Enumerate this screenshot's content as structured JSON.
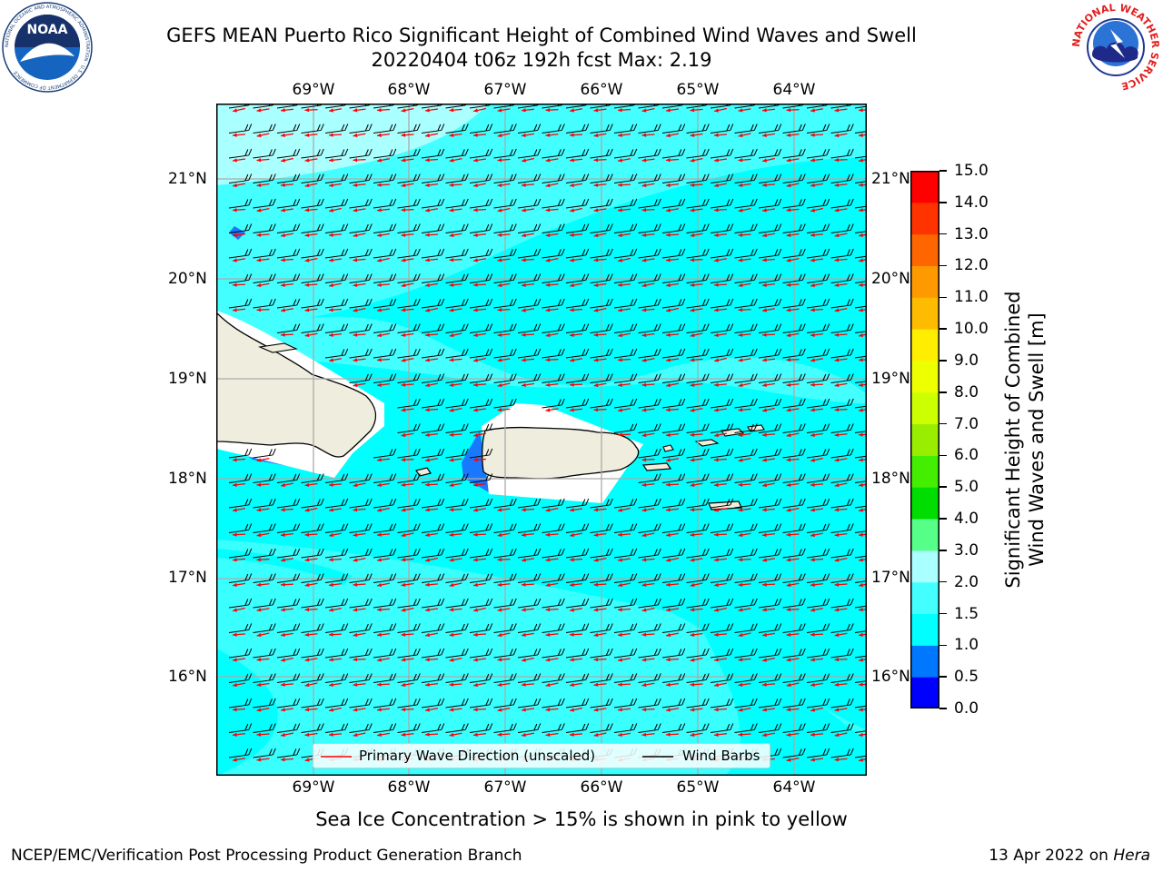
{
  "title": {
    "line1": "GEFS MEAN Puerto Rico Significant Height of Combined Wind Waves and Swell",
    "line2": "20220404 t06z 192h fcst   Max: 2.19"
  },
  "logos": {
    "left": {
      "text": "NOAA",
      "ring_text": "NATIONAL OCEANIC AND ATMOSPHERIC ADMINISTRATION · U.S. DEPARTMENT OF COMMERCE",
      "icon": "noaa-logo"
    },
    "right": {
      "ring_text": "NATIONAL WEATHER SERVICE",
      "icon": "nws-logo"
    }
  },
  "map": {
    "lon_labels": [
      "69°W",
      "68°W",
      "67°W",
      "66°W",
      "65°W",
      "64°W"
    ],
    "lat_labels": [
      "21°N",
      "20°N",
      "19°N",
      "18°N",
      "17°N",
      "16°N"
    ],
    "land_color": "#efedde",
    "ocean_fill_color": "#00ffff",
    "legend": {
      "wave_direction_label": "Primary Wave Direction (unscaled)",
      "wind_barbs_label": "Wind Barbs",
      "wave_direction_color": "#ff0000",
      "wind_barbs_color": "#000000"
    }
  },
  "colorbar": {
    "label_line1": "Significant Height of Combined",
    "label_line2": "Wind Waves and Swell [m]",
    "ticks": [
      "0.0",
      "0.5",
      "1.0",
      "1.5",
      "2.0",
      "3.0",
      "4.0",
      "5.0",
      "6.0",
      "7.0",
      "8.0",
      "9.0",
      "10.0",
      "11.0",
      "12.0",
      "13.0",
      "14.0",
      "15.0"
    ],
    "colors": [
      "#0000ff",
      "#0077ff",
      "#00ffff",
      "#44ffff",
      "#aaffff",
      "#55ff88",
      "#00dd00",
      "#44ee00",
      "#99ee00",
      "#ccff00",
      "#eeff00",
      "#ffee00",
      "#ffbb00",
      "#ff9900",
      "#ff6600",
      "#ff3300",
      "#ff0000"
    ]
  },
  "sea_ice_note": "Sea Ice Concentration > 15% is shown in pink to yellow",
  "footer": {
    "left": "NCEP/EMC/Verification Post Processing Product Generation Branch",
    "right_prefix": "13 Apr 2022 on ",
    "right_host": "Hera"
  }
}
